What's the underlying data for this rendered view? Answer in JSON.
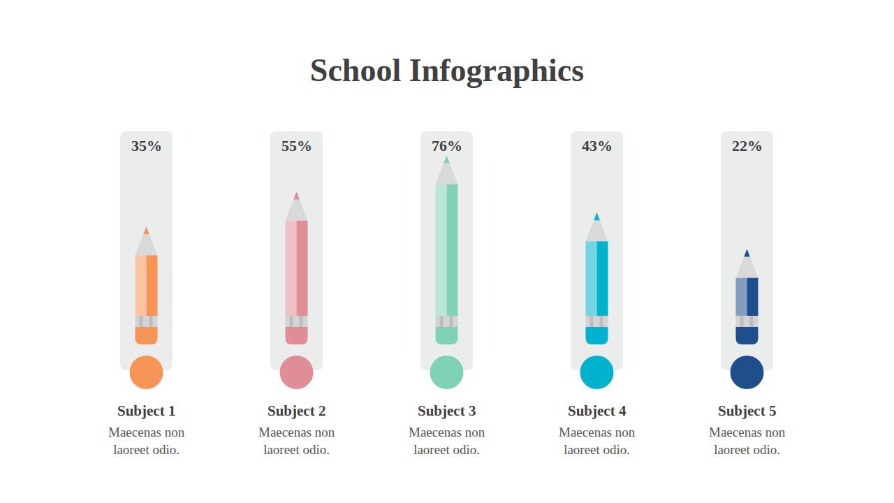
{
  "chart_data": {
    "type": "bar",
    "title": "School Infographics",
    "categories": [
      "Subject 1",
      "Subject 2",
      "Subject 3",
      "Subject 4",
      "Subject 5"
    ],
    "descriptions": [
      "Maecenas non laoreet odio.",
      "Maecenas non laoreet odio.",
      "Maecenas non laoreet odio.",
      "Maecenas non laoreet odio.",
      "Maecenas non laoreet odio."
    ],
    "values": [
      35,
      55,
      76,
      43,
      22
    ],
    "value_labels": [
      "35%",
      "55%",
      "76%",
      "43%",
      "22%"
    ],
    "colors": [
      "#f79559",
      "#e18d95",
      "#7fd2b6",
      "#00b2cd",
      "#1f4e8c"
    ],
    "ylim": [
      0,
      100
    ],
    "data_labels": true,
    "tick_labels": false,
    "grid": false,
    "marker": "pencil"
  }
}
